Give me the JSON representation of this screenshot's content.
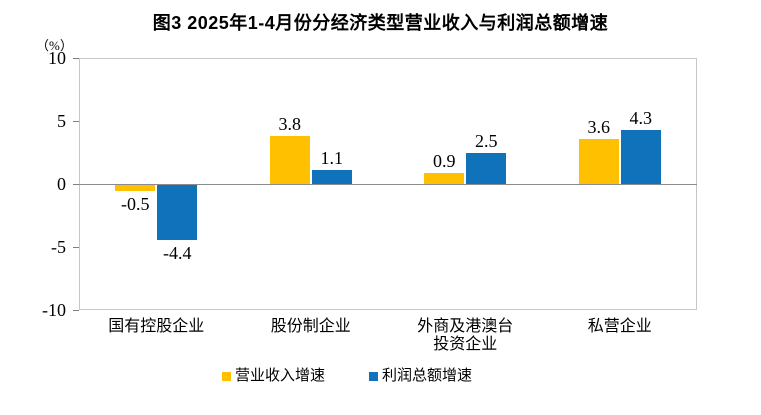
{
  "figure": {
    "title": "图3 2025年1-4月份分经济类型营业收入与利润总额增速",
    "unit_label": "（%）"
  },
  "chart_data": {
    "type": "bar",
    "categories": [
      "国有控股企业",
      "股份制企业",
      "外商及港澳台\n投资企业",
      "私营企业"
    ],
    "series": [
      {
        "name": "营业收入增速",
        "color": "#FFC000",
        "values": [
          -0.5,
          3.8,
          0.9,
          3.6
        ]
      },
      {
        "name": "利润总额增速",
        "color": "#1072BA",
        "values": [
          -4.4,
          1.1,
          2.5,
          4.3
        ]
      }
    ],
    "title": "图3 2025年1-4月份分经济类型营业收入与利润总额增速",
    "xlabel": "",
    "ylabel": "（%）",
    "ylim": [
      -10,
      10
    ],
    "yticks": [
      10,
      5,
      0,
      -5,
      -10
    ],
    "grid": false,
    "legend_position": "bottom",
    "value_labels": true,
    "axis_border_color": "#C6C6C6",
    "zero_line_color": "#8C8C8C"
  }
}
